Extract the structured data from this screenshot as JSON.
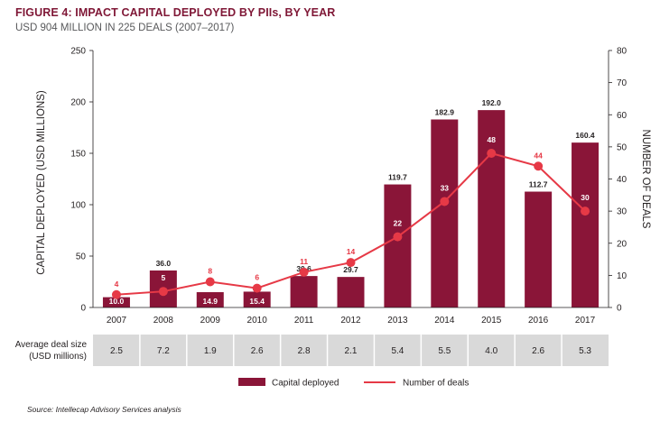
{
  "title": "FIGURE 4: IMPACT CAPITAL DEPLOYED BY PIIs, BY YEAR",
  "subtitle": "USD 904 MILLION IN 225 DEALS (2007–2017)",
  "source": "Source: Intellecap Advisory Services analysis",
  "colors": {
    "bar": "#8a1538",
    "line": "#e63946",
    "table_bg": "#d9d9d9",
    "title": "#7f1736"
  },
  "chart_data": {
    "type": "bar",
    "categories": [
      "2007",
      "2008",
      "2009",
      "2010",
      "2011",
      "2012",
      "2013",
      "2014",
      "2015",
      "2016",
      "2017"
    ],
    "series": [
      {
        "name": "Capital deployed",
        "type": "bar",
        "axis": "left",
        "values": [
          10.0,
          36.0,
          14.9,
          15.4,
          30.6,
          29.7,
          119.7,
          182.9,
          192.0,
          112.7,
          160.4
        ],
        "labels": [
          "10.0",
          "36.0",
          "14.9",
          "15.4",
          "30.6",
          "29.7",
          "119.7",
          "182.9",
          "192.0",
          "112.7",
          "160.4"
        ]
      },
      {
        "name": "Number of deals",
        "type": "line",
        "axis": "right",
        "values": [
          4,
          5,
          8,
          6,
          11,
          14,
          22,
          33,
          48,
          44,
          30
        ],
        "labels": [
          "4",
          "5",
          "8",
          "6",
          "11",
          "14",
          "22",
          "33",
          "48",
          "44",
          "30"
        ]
      }
    ],
    "ylabel": "CAPITAL DEPLOYED (USD MILLIONS)",
    "ylim": [
      0,
      250
    ],
    "yticks": [
      "0",
      "50",
      "100",
      "150",
      "200",
      "250"
    ],
    "y2label": "NUMBER OF DEALS",
    "y2lim": [
      0,
      80
    ],
    "y2ticks": [
      "0",
      "10",
      "20",
      "30",
      "40",
      "50",
      "60",
      "70",
      "80"
    ],
    "legend": {
      "position": "bottom",
      "entries": [
        "Capital deployed",
        "Number of deals"
      ]
    },
    "table": {
      "row_label_line1": "Average deal size",
      "row_label_line2": "(USD millions)",
      "values": [
        "2.5",
        "7.2",
        "1.9",
        "2.6",
        "2.8",
        "2.1",
        "5.4",
        "5.5",
        "4.0",
        "2.6",
        "5.3"
      ]
    }
  }
}
